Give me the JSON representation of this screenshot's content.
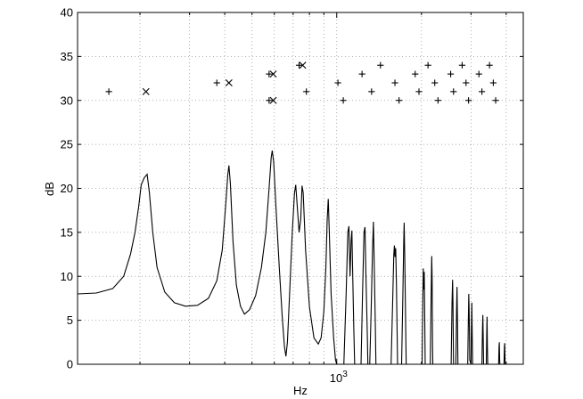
{
  "chart_data": {
    "type": "line",
    "xlabel": "Hz",
    "ylabel": "dB",
    "x_scale": "log",
    "xlim": [
      120,
      4600
    ],
    "ylim": [
      0,
      40
    ],
    "y_ticks": [
      0,
      5,
      10,
      15,
      20,
      25,
      30,
      35,
      40
    ],
    "x_tick_labels": [
      {
        "value": 1000,
        "base": "10",
        "exponent": "3"
      }
    ],
    "grid": true,
    "series": [
      {
        "kind": "curve",
        "points": [
          [
            120,
            8.0
          ],
          [
            140,
            8.1
          ],
          [
            160,
            8.6
          ],
          [
            175,
            10.0
          ],
          [
            185,
            12.5
          ],
          [
            192,
            15.0
          ],
          [
            198,
            18.0
          ],
          [
            202,
            20.4
          ],
          [
            207,
            21.2
          ],
          [
            212,
            21.6
          ],
          [
            216,
            19.5
          ],
          [
            222,
            15.0
          ],
          [
            230,
            11.0
          ],
          [
            245,
            8.2
          ],
          [
            265,
            7.0
          ],
          [
            290,
            6.6
          ],
          [
            320,
            6.7
          ],
          [
            350,
            7.5
          ],
          [
            375,
            9.5
          ],
          [
            392,
            13.0
          ],
          [
            403,
            18.0
          ],
          [
            410,
            21.5
          ],
          [
            414,
            22.6
          ],
          [
            419,
            20.5
          ],
          [
            428,
            14.0
          ],
          [
            440,
            9.0
          ],
          [
            455,
            6.6
          ],
          [
            470,
            5.7
          ],
          [
            490,
            6.2
          ],
          [
            515,
            7.8
          ],
          [
            540,
            11.0
          ],
          [
            560,
            15.0
          ],
          [
            575,
            20.0
          ],
          [
            585,
            23.5
          ],
          [
            590,
            24.3
          ],
          [
            597,
            23.0
          ],
          [
            608,
            18.0
          ],
          [
            625,
            11.0
          ],
          [
            640,
            5.5
          ],
          [
            652,
            2.0
          ],
          [
            660,
            0.9
          ],
          [
            668,
            2.5
          ],
          [
            680,
            8.0
          ],
          [
            695,
            15.0
          ],
          [
            708,
            19.5
          ],
          [
            715,
            20.4
          ],
          [
            722,
            18.5
          ],
          [
            735,
            15.0
          ],
          [
            745,
            16.5
          ],
          [
            753,
            20.3
          ],
          [
            760,
            19.5
          ],
          [
            775,
            13.0
          ],
          [
            800,
            6.5
          ],
          [
            830,
            3.0
          ],
          [
            860,
            2.3
          ],
          [
            880,
            3.0
          ],
          [
            900,
            6.0
          ],
          [
            915,
            11.0
          ],
          [
            925,
            16.5
          ],
          [
            933,
            18.8
          ],
          [
            940,
            15.5
          ],
          [
            955,
            8.0
          ],
          [
            975,
            3.0
          ],
          [
            990,
            0.5
          ],
          [
            1000,
            0.0
          ],
          [
            1060,
            0.0
          ],
          [
            1080,
            8.0
          ],
          [
            1095,
            15.0
          ],
          [
            1105,
            15.7
          ],
          [
            1115,
            10.0
          ],
          [
            1125,
            14.0
          ],
          [
            1132,
            15.2
          ],
          [
            1140,
            10.0
          ],
          [
            1150,
            4.0
          ],
          [
            1158,
            0.0
          ],
          [
            1220,
            0.0
          ],
          [
            1235,
            8.0
          ],
          [
            1250,
            15.0
          ],
          [
            1260,
            15.6
          ],
          [
            1270,
            10.0
          ],
          [
            1285,
            3.0
          ],
          [
            1290,
            0.0
          ],
          [
            1310,
            0.0
          ],
          [
            1325,
            6.0
          ],
          [
            1340,
            13.0
          ],
          [
            1350,
            16.2
          ],
          [
            1358,
            12.0
          ],
          [
            1372,
            4.0
          ],
          [
            1378,
            0.0
          ],
          [
            1560,
            0.0
          ],
          [
            1580,
            7.0
          ],
          [
            1595,
            12.5
          ],
          [
            1603,
            13.5
          ],
          [
            1610,
            12.2
          ],
          [
            1620,
            13.2
          ],
          [
            1630,
            9.0
          ],
          [
            1645,
            0.0
          ],
          [
            1700,
            0.0
          ],
          [
            1718,
            8.0
          ],
          [
            1730,
            14.0
          ],
          [
            1736,
            16.1
          ],
          [
            1745,
            12.0
          ],
          [
            1760,
            3.0
          ],
          [
            1765,
            0.0
          ],
          [
            2010,
            0.0
          ],
          [
            2022,
            7.0
          ],
          [
            2030,
            10.9
          ],
          [
            2038,
            8.5
          ],
          [
            2046,
            10.5
          ],
          [
            2055,
            5.0
          ],
          [
            2062,
            0.0
          ],
          [
            2150,
            0.0
          ],
          [
            2165,
            8.0
          ],
          [
            2175,
            12.3
          ],
          [
            2182,
            10.0
          ],
          [
            2190,
            2.0
          ],
          [
            2195,
            0.0
          ],
          [
            2550,
            0.0
          ],
          [
            2568,
            7.0
          ],
          [
            2580,
            9.6
          ],
          [
            2588,
            7.0
          ],
          [
            2600,
            0.0
          ],
          [
            2650,
            0.0
          ],
          [
            2665,
            6.0
          ],
          [
            2675,
            8.8
          ],
          [
            2685,
            5.0
          ],
          [
            2695,
            0.0
          ],
          [
            2920,
            0.0
          ],
          [
            2935,
            5.0
          ],
          [
            2945,
            8.0
          ],
          [
            2952,
            6.5
          ],
          [
            2960,
            4.0
          ],
          [
            2968,
            0.5
          ],
          [
            3000,
            0.0
          ],
          [
            3010,
            4.0
          ],
          [
            3020,
            7.0
          ],
          [
            3030,
            3.0
          ],
          [
            3040,
            0.0
          ],
          [
            3280,
            0.0
          ],
          [
            3295,
            4.0
          ],
          [
            3305,
            5.6
          ],
          [
            3315,
            3.0
          ],
          [
            3325,
            0.0
          ],
          [
            3400,
            0.0
          ],
          [
            3412,
            3.5
          ],
          [
            3420,
            5.4
          ],
          [
            3430,
            2.0
          ],
          [
            3440,
            0.0
          ],
          [
            3760,
            0.0
          ],
          [
            3772,
            2.0
          ],
          [
            3782,
            2.5
          ],
          [
            3792,
            0.5
          ],
          [
            3800,
            0.0
          ],
          [
            3930,
            0.0
          ],
          [
            3942,
            2.0
          ],
          [
            3952,
            2.4
          ],
          [
            3962,
            0.5
          ],
          [
            3972,
            0.0
          ],
          [
            4600,
            0.0
          ]
        ]
      },
      {
        "kind": "markers",
        "marker": "plus",
        "points": [
          [
            155,
            31
          ],
          [
            375,
            32
          ],
          [
            575,
            30
          ],
          [
            575,
            33
          ],
          [
            735,
            34
          ],
          [
            780,
            31
          ],
          [
            1010,
            32
          ],
          [
            1055,
            30
          ],
          [
            1230,
            33
          ],
          [
            1330,
            31
          ],
          [
            1430,
            34
          ],
          [
            1610,
            32
          ],
          [
            1665,
            30
          ],
          [
            1900,
            33
          ],
          [
            1960,
            31
          ],
          [
            2110,
            34
          ],
          [
            2230,
            32
          ],
          [
            2290,
            30
          ],
          [
            2540,
            33
          ],
          [
            2600,
            31
          ],
          [
            2790,
            34
          ],
          [
            2880,
            32
          ],
          [
            2940,
            30
          ],
          [
            3200,
            33
          ],
          [
            3280,
            31
          ],
          [
            3490,
            34
          ],
          [
            3600,
            32
          ],
          [
            3670,
            30
          ]
        ]
      },
      {
        "kind": "markers",
        "marker": "x",
        "points": [
          [
            210,
            31
          ],
          [
            414,
            32
          ],
          [
            595,
            33
          ],
          [
            595,
            30
          ],
          [
            757,
            34
          ]
        ]
      }
    ]
  }
}
